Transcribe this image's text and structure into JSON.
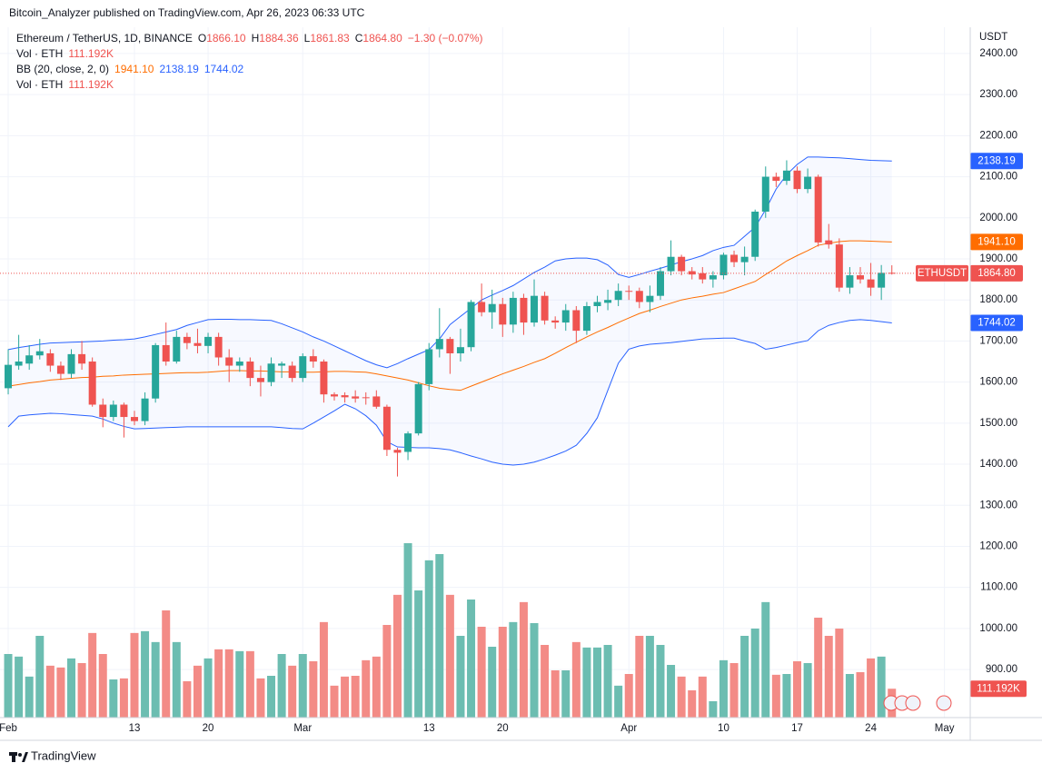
{
  "header": {
    "published": "Bitcoin_Analyzer published on TradingView.com, Apr 26, 2023 06:33 UTC"
  },
  "legend": {
    "symbol": "Ethereum / TetherUS, 1D, BINANCE",
    "ohlc": [
      {
        "key": "O",
        "value": "1866.10"
      },
      {
        "key": "H",
        "value": "1884.36"
      },
      {
        "key": "L",
        "value": "1861.83"
      },
      {
        "key": "C",
        "value": "1864.80"
      }
    ],
    "change": "−1.30 (−0.07%)",
    "vol": {
      "name": "Vol · ETH",
      "value": "111.192K"
    },
    "bb": {
      "name": "BB (20, close, 2, 0)",
      "basis": "1941.10",
      "upper": "2138.19",
      "lower": "1744.02"
    },
    "vol2": {
      "name": "Vol · ETH",
      "value": "111.192K"
    }
  },
  "chart_data": {
    "type": "candlestick",
    "y_unit": "USDT",
    "symbol_badge": "ETHUSDT",
    "up_color": "#26a69a",
    "down_color": "#ef5350",
    "volume_up_color": "#6cbdb1",
    "volume_down_color": "#f38b86",
    "bb_basis_color": "#ff6d00",
    "bb_band_color": "#2962ff",
    "grid": true,
    "xlim": [
      -0.78,
      91.45
    ],
    "xticks": [
      {
        "value": 0,
        "label": "Feb"
      },
      {
        "value": 12,
        "label": "13"
      },
      {
        "value": 19,
        "label": "20"
      },
      {
        "value": 28,
        "label": "Mar"
      },
      {
        "value": 40,
        "label": "13"
      },
      {
        "value": 47,
        "label": "20"
      },
      {
        "value": 59,
        "label": "Apr"
      },
      {
        "value": 68,
        "label": "10"
      },
      {
        "value": 75,
        "label": "17"
      },
      {
        "value": 82,
        "label": "24"
      },
      {
        "value": 89,
        "label": "May"
      }
    ],
    "ylim": [
      783,
      2464
    ],
    "yticks": [
      {
        "value": 2400,
        "label": "2400.00"
      },
      {
        "value": 2300,
        "label": "2300.00"
      },
      {
        "value": 2200,
        "label": "2200.00"
      },
      {
        "value": 2100,
        "label": "2100.00"
      },
      {
        "value": 2000,
        "label": "2000.00"
      },
      {
        "value": 1900,
        "label": "1900.00"
      },
      {
        "value": 1800,
        "label": "1800.00"
      },
      {
        "value": 1700,
        "label": "1700.00"
      },
      {
        "value": 1600,
        "label": "1600.00"
      },
      {
        "value": 1500,
        "label": "1500.00"
      },
      {
        "value": 1400,
        "label": "1400.00"
      },
      {
        "value": 1300,
        "label": "1300.00"
      },
      {
        "value": 1200,
        "label": "1200.00"
      },
      {
        "value": 1100,
        "label": "1100.00"
      },
      {
        "value": 1000,
        "label": "1000.00"
      },
      {
        "value": 900,
        "label": "900.00"
      }
    ],
    "open": [
      1585,
      1640,
      1645,
      1665,
      1670,
      1640,
      1620,
      1668,
      1650,
      1545,
      1515,
      1545,
      1515,
      1505,
      1560,
      1690,
      1650,
      1710,
      1695,
      1688,
      1710,
      1660,
      1640,
      1650,
      1610,
      1600,
      1640,
      1640,
      1610,
      1663,
      1650,
      1570,
      1568,
      1565,
      1563,
      1565,
      1540,
      1435,
      1430,
      1475,
      1595,
      1680,
      1705,
      1670,
      1685,
      1795,
      1770,
      1790,
      1740,
      1805,
      1745,
      1810,
      1750,
      1745,
      1775,
      1725,
      1785,
      1793,
      1800,
      1822,
      1822,
      1795,
      1810,
      1870,
      1905,
      1870,
      1865,
      1850,
      1860,
      1910,
      1892,
      1905,
      2015,
      2100,
      2090,
      2115,
      2070,
      2100,
      1945,
      1935,
      1830,
      1860,
      1850,
      1830,
      1866.1
    ],
    "high": [
      1680,
      1715,
      1690,
      1705,
      1680,
      1650,
      1680,
      1700,
      1660,
      1560,
      1555,
      1550,
      1530,
      1575,
      1695,
      1745,
      1725,
      1720,
      1730,
      1720,
      1720,
      1680,
      1660,
      1660,
      1640,
      1660,
      1650,
      1650,
      1670,
      1680,
      1655,
      1575,
      1575,
      1580,
      1575,
      1580,
      1545,
      1440,
      1480,
      1600,
      1695,
      1780,
      1710,
      1730,
      1800,
      1840,
      1825,
      1805,
      1820,
      1815,
      1850,
      1820,
      1760,
      1790,
      1785,
      1795,
      1810,
      1825,
      1840,
      1835,
      1830,
      1835,
      1880,
      1945,
      1910,
      1880,
      1880,
      1870,
      1915,
      1920,
      1930,
      2020,
      2125,
      2110,
      2140,
      2125,
      2120,
      2105,
      1985,
      1950,
      1880,
      1880,
      1890,
      1885,
      1884.36
    ],
    "low": [
      1570,
      1630,
      1630,
      1655,
      1625,
      1605,
      1610,
      1630,
      1540,
      1490,
      1505,
      1465,
      1495,
      1495,
      1550,
      1640,
      1645,
      1680,
      1670,
      1670,
      1640,
      1600,
      1625,
      1590,
      1565,
      1590,
      1610,
      1600,
      1600,
      1635,
      1550,
      1555,
      1550,
      1550,
      1545,
      1535,
      1420,
      1370,
      1410,
      1470,
      1580,
      1660,
      1620,
      1650,
      1675,
      1760,
      1730,
      1710,
      1720,
      1715,
      1735,
      1740,
      1730,
      1725,
      1695,
      1715,
      1770,
      1775,
      1785,
      1800,
      1780,
      1770,
      1800,
      1860,
      1860,
      1850,
      1840,
      1830,
      1850,
      1880,
      1860,
      1895,
      2000,
      2075,
      2080,
      2060,
      2060,
      1930,
      1925,
      1820,
      1815,
      1840,
      1810,
      1800,
      1861.83
    ],
    "close": [
      1642,
      1650,
      1665,
      1675,
      1640,
      1620,
      1668,
      1645,
      1545,
      1515,
      1545,
      1515,
      1505,
      1560,
      1690,
      1650,
      1710,
      1695,
      1688,
      1710,
      1660,
      1640,
      1650,
      1610,
      1600,
      1645,
      1645,
      1610,
      1663,
      1650,
      1570,
      1565,
      1563,
      1560,
      1561,
      1540,
      1435,
      1428,
      1475,
      1595,
      1680,
      1705,
      1670,
      1685,
      1795,
      1770,
      1790,
      1740,
      1805,
      1745,
      1810,
      1750,
      1745,
      1775,
      1725,
      1785,
      1795,
      1800,
      1822,
      1820,
      1795,
      1810,
      1870,
      1905,
      1870,
      1862,
      1850,
      1860,
      1910,
      1892,
      1905,
      2015,
      2100,
      2090,
      2115,
      2070,
      2100,
      1940,
      1935,
      1830,
      1860,
      1850,
      1830,
      1866,
      1864.8
    ],
    "volume": [
      245,
      235,
      158,
      315,
      200,
      193,
      228,
      210,
      326,
      245,
      147,
      151,
      326,
      333,
      291,
      413,
      291,
      140,
      200,
      228,
      263,
      263,
      256,
      256,
      151,
      161,
      245,
      200,
      245,
      217,
      368,
      123,
      158,
      161,
      221,
      235,
      357,
      473,
      672,
      490,
      606,
      630,
      473,
      315,
      455,
      350,
      273,
      350,
      368,
      445,
      364,
      280,
      182,
      182,
      291,
      270,
      270,
      280,
      123,
      168,
      315,
      315,
      280,
      203,
      158,
      105,
      158,
      63,
      221,
      210,
      315,
      343,
      445,
      165,
      168,
      217,
      210,
      385,
      315,
      343,
      168,
      175,
      228,
      235,
      111.192
    ],
    "bb_basis": [
      1590,
      1594,
      1598,
      1601,
      1605,
      1607,
      1609,
      1611,
      1612,
      1614,
      1615,
      1617,
      1618,
      1619,
      1620,
      1621,
      1622,
      1623,
      1623,
      1624,
      1626,
      1628,
      1628,
      1627,
      1627,
      1626,
      1625,
      1625,
      1624,
      1624,
      1625,
      1626,
      1626,
      1625,
      1624,
      1620,
      1615,
      1610,
      1605,
      1598,
      1591,
      1585,
      1582,
      1580,
      1590,
      1600,
      1610,
      1620,
      1629,
      1638,
      1648,
      1657,
      1670,
      1684,
      1697,
      1710,
      1722,
      1733,
      1745,
      1756,
      1767,
      1775,
      1784,
      1792,
      1800,
      1805,
      1809,
      1814,
      1818,
      1827,
      1836,
      1845,
      1862,
      1878,
      1895,
      1908,
      1920,
      1933,
      1938,
      1942,
      1944,
      1944,
      1943,
      1942,
      1941.1
    ],
    "bb_upper": [
      1679,
      1684,
      1688,
      1692,
      1695,
      1696,
      1697,
      1698,
      1699,
      1700,
      1702,
      1703,
      1705,
      1710,
      1716,
      1722,
      1728,
      1738,
      1745,
      1752,
      1753,
      1753,
      1752,
      1752,
      1751,
      1750,
      1742,
      1732,
      1722,
      1710,
      1700,
      1688,
      1676,
      1664,
      1652,
      1642,
      1635,
      1645,
      1657,
      1668,
      1679,
      1705,
      1740,
      1760,
      1780,
      1800,
      1812,
      1823,
      1835,
      1851,
      1867,
      1880,
      1895,
      1900,
      1902,
      1902,
      1898,
      1885,
      1862,
      1855,
      1862,
      1870,
      1877,
      1885,
      1893,
      1900,
      1908,
      1920,
      1928,
      1933,
      1955,
      1977,
      2020,
      2070,
      2105,
      2130,
      2148,
      2148,
      2147,
      2146,
      2144,
      2142,
      2140,
      2139,
      2138.19
    ],
    "bb_lower": [
      1491,
      1517,
      1520,
      1522,
      1524,
      1523,
      1521,
      1519,
      1517,
      1510,
      1500,
      1492,
      1486,
      1487,
      1488,
      1489,
      1490,
      1491,
      1491,
      1491,
      1491,
      1491,
      1491,
      1491,
      1491,
      1491,
      1489,
      1487,
      1486,
      1500,
      1515,
      1530,
      1546,
      1535,
      1518,
      1495,
      1455,
      1442,
      1441,
      1440,
      1440,
      1438,
      1435,
      1428,
      1420,
      1413,
      1405,
      1400,
      1398,
      1400,
      1405,
      1413,
      1422,
      1432,
      1446,
      1475,
      1513,
      1580,
      1646,
      1680,
      1688,
      1692,
      1694,
      1696,
      1699,
      1702,
      1705,
      1706,
      1707,
      1707,
      1700,
      1694,
      1680,
      1684,
      1690,
      1696,
      1701,
      1725,
      1738,
      1745,
      1750,
      1752,
      1750,
      1747,
      1744.02
    ]
  },
  "footer": {
    "brand": "TradingView"
  }
}
